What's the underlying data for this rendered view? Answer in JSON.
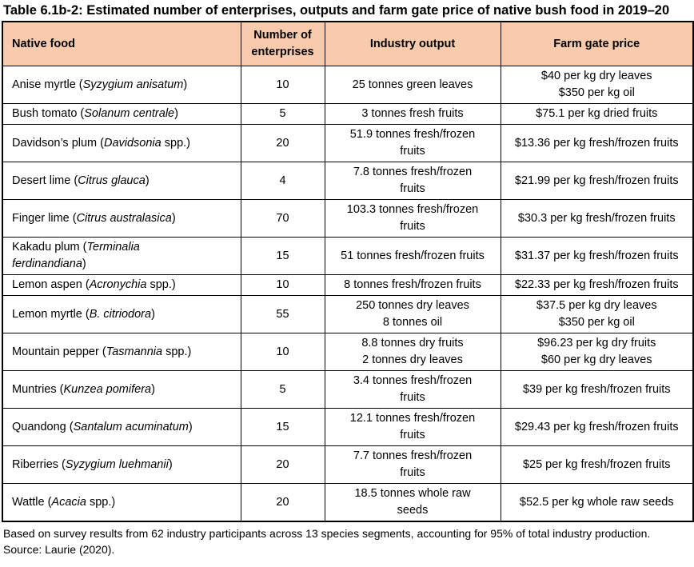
{
  "title": "Table 6.1b-2: Estimated number of enterprises, outputs and farm gate price of native bush food in 2019–20",
  "columns": [
    "Native food",
    "Number of enterprises",
    "Industry output",
    "Farm gate price"
  ],
  "rows": [
    {
      "food": {
        "pre": "Anise myrtle (",
        "italic": "Syzygium anisatum",
        "post": ")"
      },
      "enterprises": "10",
      "output_lines": [
        "25 tonnes green leaves"
      ],
      "price_lines": [
        "$40 per kg dry leaves",
        "$350 per kg oil"
      ]
    },
    {
      "food": {
        "pre": "Bush tomato (",
        "italic": "Solanum centrale",
        "post": ")"
      },
      "enterprises": "5",
      "output_lines": [
        "3 tonnes fresh fruits"
      ],
      "price_lines": [
        "$75.1 per kg dried fruits"
      ]
    },
    {
      "food": {
        "pre": "Davidson’s plum (",
        "italic": "Davidsonia",
        "post": " spp.)"
      },
      "enterprises": "20",
      "output_lines": [
        "51.9 tonnes fresh/frozen",
        "fruits"
      ],
      "price_lines": [
        "$13.36 per kg fresh/frozen fruits"
      ]
    },
    {
      "food": {
        "pre": "Desert lime (",
        "italic": "Citrus glauca",
        "post": ")"
      },
      "enterprises": "4",
      "output_lines": [
        "7.8 tonnes fresh/frozen",
        "fruits"
      ],
      "price_lines": [
        "$21.99 per kg fresh/frozen fruits"
      ]
    },
    {
      "food": {
        "pre": "Finger lime (",
        "italic": "Citrus australasica",
        "post": ")"
      },
      "enterprises": "70",
      "output_lines": [
        "103.3 tonnes fresh/frozen",
        "fruits"
      ],
      "price_lines": [
        "$30.3 per kg fresh/frozen fruits"
      ]
    },
    {
      "food": {
        "pre": "Kakadu plum (",
        "italic": "Terminalia ferdinandiana",
        "post": ")"
      },
      "enterprises": "15",
      "output_lines": [
        "51 tonnes fresh/frozen fruits"
      ],
      "price_lines": [
        "$31.37 per kg fresh/frozen fruits"
      ]
    },
    {
      "food": {
        "pre": "Lemon aspen (",
        "italic": "Acronychia",
        "post": " spp.)"
      },
      "enterprises": "10",
      "output_lines": [
        "8 tonnes fresh/frozen fruits"
      ],
      "price_lines": [
        "$22.33 per kg fresh/frozen fruits"
      ]
    },
    {
      "food": {
        "pre": "Lemon myrtle (",
        "italic": "B. citriodora",
        "post": ")"
      },
      "enterprises": "55",
      "output_lines": [
        "250 tonnes dry leaves",
        "8 tonnes oil"
      ],
      "price_lines": [
        "$37.5 per kg dry leaves",
        "$350 per kg oil"
      ]
    },
    {
      "food": {
        "pre": "Mountain pepper (",
        "italic": "Tasmannia",
        "post": " spp.)"
      },
      "enterprises": "10",
      "output_lines": [
        "8.8 tonnes dry fruits",
        "2 tonnes dry leaves"
      ],
      "price_lines": [
        "$96.23 per kg dry fruits",
        "$60 per kg dry leaves"
      ]
    },
    {
      "food": {
        "pre": "Muntries (",
        "italic": "Kunzea pomifera",
        "post": ")"
      },
      "enterprises": "5",
      "output_lines": [
        "3.4 tonnes fresh/frozen",
        "fruits"
      ],
      "price_lines": [
        "$39 per kg fresh/frozen fruits"
      ]
    },
    {
      "food": {
        "pre": "Quandong (",
        "italic": "Santalum acuminatum",
        "post": ")"
      },
      "enterprises": "15",
      "output_lines": [
        "12.1 tonnes fresh/frozen",
        "fruits"
      ],
      "price_lines": [
        "$29.43 per kg fresh/frozen fruits"
      ]
    },
    {
      "food": {
        "pre": "Riberries (",
        "italic": "Syzygium luehmanii",
        "post": ")"
      },
      "enterprises": "20",
      "output_lines": [
        "7.7 tonnes fresh/frozen",
        "fruits"
      ],
      "price_lines": [
        "$25 per kg fresh/frozen fruits"
      ]
    },
    {
      "food": {
        "pre": "Wattle (",
        "italic": "Acacia",
        "post": " spp.)"
      },
      "enterprises": "20",
      "output_lines": [
        "18.5 tonnes whole raw",
        "seeds"
      ],
      "price_lines": [
        "$52.5 per kg whole raw seeds"
      ]
    }
  ],
  "footnotes": {
    "survey": "Based on survey results from 62 industry participants across 13 species segments, accounting for 95% of total industry production.",
    "source": "Source: Laurie (2020)."
  },
  "colors": {
    "header_bg": "#F8CBAD",
    "border": "#000000",
    "text": "#000000"
  }
}
